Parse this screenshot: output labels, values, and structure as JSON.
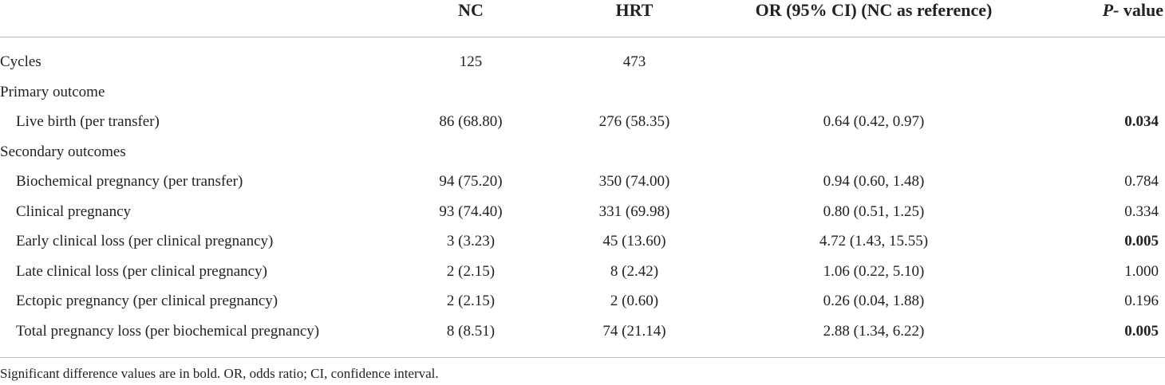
{
  "table": {
    "header": [
      "NC",
      "HRT",
      "OR (95% CI) (NC as reference)",
      {
        "italic": "P-",
        "text": " value"
      }
    ],
    "rows": [
      {
        "label": "Cycles",
        "level": 0,
        "values": [
          "125",
          "473"
        ]
      },
      {
        "label": "Primary outcome",
        "level": 0
      },
      {
        "label": "Live birth (per transfer)",
        "level": 1,
        "values": [
          "86 (68.80)",
          "276 (58.35)",
          "0.64 (0.42, 0.97)",
          "0.034"
        ],
        "bold_p": true
      },
      {
        "label": "Secondary outcomes",
        "level": 0
      },
      {
        "label": "Biochemical pregnancy (per transfer)",
        "level": 1,
        "values": [
          "94 (75.20)",
          "350 (74.00)",
          "0.94 (0.60, 1.48)",
          "0.784"
        ],
        "bold_p": false
      },
      {
        "label": "Clinical pregnancy",
        "level": 1,
        "values": [
          "93 (74.40)",
          "331 (69.98)",
          "0.80 (0.51, 1.25)",
          "0.334"
        ],
        "bold_p": false
      },
      {
        "label": "Early clinical loss (per clinical pregnancy)",
        "level": 1,
        "values": [
          "3 (3.23)",
          "45 (13.60)",
          "4.72 (1.43, 15.55)",
          "0.005"
        ],
        "bold_p": true
      },
      {
        "label": "Late clinical loss (per clinical pregnancy)",
        "level": 1,
        "values": [
          "2 (2.15)",
          "8 (2.42)",
          "1.06 (0.22, 5.10)",
          "1.000"
        ],
        "bold_p": false
      },
      {
        "label": "Ectopic pregnancy (per clinical pregnancy)",
        "level": 1,
        "values": [
          "2 (2.15)",
          "2 (0.60)",
          "0.26 (0.04, 1.88)",
          "0.196"
        ],
        "bold_p": false
      },
      {
        "label": "Total pregnancy loss (per biochemical pregnancy)",
        "level": 1,
        "values": [
          "8 (8.51)",
          "74 (21.14)",
          "2.88 (1.34, 6.22)",
          "0.005"
        ],
        "bold_p": true
      }
    ],
    "footnote": "Significant difference values are in bold. OR, odds ratio; CI, confidence interval."
  }
}
